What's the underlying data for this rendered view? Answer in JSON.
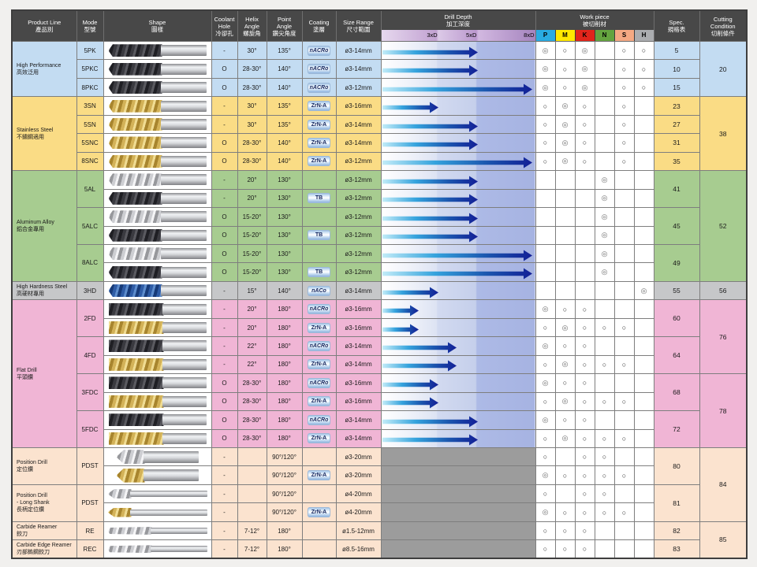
{
  "table": {
    "columns": {
      "product": [
        "Product Line",
        "產品別"
      ],
      "mode": [
        "Mode",
        "型號"
      ],
      "shape": [
        "Shape",
        "圖樣"
      ],
      "coolant": [
        "Coolant",
        "Hole",
        "冷卻孔"
      ],
      "helix": [
        "Helix",
        "Angle",
        "螺旋角"
      ],
      "point": [
        "Point",
        "Angle",
        "鑽尖角度"
      ],
      "coating": [
        "Coating",
        "塗層"
      ],
      "size": [
        "Size Range",
        "尺寸範圍"
      ],
      "depth": [
        "Drill Depth",
        "加工深度"
      ],
      "work": [
        "Work piece",
        "被切削材"
      ],
      "spec": [
        "Spec.",
        "規格表"
      ],
      "cutting": [
        "Cutting",
        "Condition",
        "切削條件"
      ]
    },
    "depth_scale": [
      "3xD",
      "5xD",
      "8xD"
    ],
    "materials": [
      {
        "label": "P",
        "color": "#29ABE2"
      },
      {
        "label": "M",
        "color": "#FFE800"
      },
      {
        "label": "K",
        "color": "#E1251B"
      },
      {
        "label": "N",
        "color": "#64A43F"
      },
      {
        "label": "S",
        "color": "#F5A983"
      },
      {
        "label": "H",
        "color": "#ABADB0"
      }
    ],
    "sections": [
      {
        "name_lines": [
          "High Performance",
          "高效泛用"
        ],
        "color": "#C3DCF2",
        "models": [
          {
            "mode": "5PK",
            "spec": "5",
            "rows": [
              {
                "flute": "dark",
                "form": "drill",
                "coolant": "-",
                "helix": "30°",
                "point": "135°",
                "coating": "nACRo",
                "size": "ø3-14mm",
                "depth": "5xD",
                "marks": [
                  "◎",
                  "○",
                  "◎",
                  "",
                  "○",
                  "○"
                ]
              }
            ]
          },
          {
            "mode": "5PKC",
            "spec": "10",
            "rows": [
              {
                "flute": "dark",
                "form": "drill",
                "coolant": "O",
                "helix": "28-30°",
                "point": "140°",
                "coating": "nACRo",
                "size": "ø3-14mm",
                "depth": "5xD",
                "marks": [
                  "◎",
                  "○",
                  "◎",
                  "",
                  "○",
                  "○"
                ]
              }
            ]
          },
          {
            "mode": "8PKC",
            "spec": "15",
            "rows": [
              {
                "flute": "dark",
                "form": "drill",
                "coolant": "O",
                "helix": "28-30°",
                "point": "140°",
                "coating": "nACRo",
                "size": "ø3-12mm",
                "depth": "8xD",
                "marks": [
                  "◎",
                  "○",
                  "◎",
                  "",
                  "○",
                  "○"
                ]
              }
            ]
          }
        ]
      },
      {
        "name_lines": [
          "Stainless Steel",
          "不鏽鋼適用"
        ],
        "color": "#FADC85",
        "models": [
          {
            "mode": "3SN",
            "spec": "23",
            "rows": [
              {
                "flute": "gold",
                "form": "drill",
                "coolant": "-",
                "helix": "30°",
                "point": "135°",
                "coating": "ZrN-A",
                "size": "ø3-16mm",
                "depth": "3xD",
                "marks": [
                  "○",
                  "◎",
                  "○",
                  "",
                  "○",
                  ""
                ]
              }
            ]
          },
          {
            "mode": "5SN",
            "spec": "27",
            "rows": [
              {
                "flute": "gold",
                "form": "drill",
                "coolant": "-",
                "helix": "30°",
                "point": "135°",
                "coating": "ZrN-A",
                "size": "ø3-14mm",
                "depth": "5xD",
                "marks": [
                  "○",
                  "◎",
                  "○",
                  "",
                  "○",
                  ""
                ]
              }
            ]
          },
          {
            "mode": "5SNC",
            "spec": "31",
            "rows": [
              {
                "flute": "gold",
                "form": "drill",
                "coolant": "O",
                "helix": "28-30°",
                "point": "140°",
                "coating": "ZrN-A",
                "size": "ø3-14mm",
                "depth": "5xD",
                "marks": [
                  "○",
                  "◎",
                  "○",
                  "",
                  "○",
                  ""
                ]
              }
            ]
          },
          {
            "mode": "8SNC",
            "spec": "35",
            "rows": [
              {
                "flute": "gold",
                "form": "drill",
                "coolant": "O",
                "helix": "28-30°",
                "point": "140°",
                "coating": "ZrN-A",
                "size": "ø3-12mm",
                "depth": "8xD",
                "marks": [
                  "○",
                  "◎",
                  "○",
                  "",
                  "○",
                  ""
                ]
              }
            ]
          }
        ]
      },
      {
        "name_lines": [
          "Aluminum Alloy",
          "鋁合金專用"
        ],
        "color": "#A7CC90",
        "models": [
          {
            "mode": "5AL",
            "spec": "41",
            "rows": [
              {
                "flute": "silver",
                "form": "drill",
                "coolant": "-",
                "helix": "20°",
                "point": "130°",
                "coating": null,
                "size": "ø3-12mm",
                "depth": "5xD",
                "marks": [
                  "",
                  "",
                  "",
                  "◎",
                  "",
                  ""
                ]
              },
              {
                "flute": "dark",
                "form": "drill",
                "coolant": "-",
                "helix": "20°",
                "point": "130°",
                "coating": "TB",
                "size": "ø3-12mm",
                "depth": "5xD",
                "marks": [
                  "",
                  "",
                  "",
                  "◎",
                  "",
                  ""
                ]
              }
            ]
          },
          {
            "mode": "5ALC",
            "spec": "45",
            "rows": [
              {
                "flute": "silver",
                "form": "drill",
                "coolant": "O",
                "helix": "15-20°",
                "point": "130°",
                "coating": null,
                "size": "ø3-12mm",
                "depth": "5xD",
                "marks": [
                  "",
                  "",
                  "",
                  "◎",
                  "",
                  ""
                ]
              },
              {
                "flute": "dark",
                "form": "drill",
                "coolant": "O",
                "helix": "15-20°",
                "point": "130°",
                "coating": "TB",
                "size": "ø3-12mm",
                "depth": "5xD",
                "marks": [
                  "",
                  "",
                  "",
                  "◎",
                  "",
                  ""
                ]
              }
            ]
          },
          {
            "mode": "8ALC",
            "spec": "49",
            "rows": [
              {
                "flute": "silver",
                "form": "drill",
                "coolant": "O",
                "helix": "15-20°",
                "point": "130°",
                "coating": null,
                "size": "ø3-12mm",
                "depth": "8xD",
                "marks": [
                  "",
                  "",
                  "",
                  "◎",
                  "",
                  ""
                ]
              },
              {
                "flute": "dark",
                "form": "drill",
                "coolant": "O",
                "helix": "15-20°",
                "point": "130°",
                "coating": "TB",
                "size": "ø3-12mm",
                "depth": "8xD",
                "marks": [
                  "",
                  "",
                  "",
                  "◎",
                  "",
                  ""
                ]
              }
            ]
          }
        ]
      },
      {
        "name_lines": [
          "High Hardness Steel",
          "高硬材專用"
        ],
        "color": "#C6C7C9",
        "models": [
          {
            "mode": "3HD",
            "spec": "55",
            "rows": [
              {
                "flute": "blue",
                "form": "drill",
                "coolant": "-",
                "helix": "15°",
                "point": "140°",
                "coating": "nACo",
                "size": "ø3-14mm",
                "depth": "3xD",
                "marks": [
                  "",
                  "",
                  "",
                  "",
                  "",
                  "◎"
                ]
              }
            ]
          }
        ]
      },
      {
        "name_lines": [
          "Flat Drill",
          "平頭鑽"
        ],
        "color": "#F0B5D5",
        "models": [
          {
            "mode": "2FD",
            "spec": "60",
            "rows": [
              {
                "flute": "dark",
                "form": "flat",
                "coolant": "-",
                "helix": "20°",
                "point": "180°",
                "coating": "nACRo",
                "size": "ø3-16mm",
                "depth": "2xD",
                "marks": [
                  "◎",
                  "○",
                  "○",
                  "",
                  "",
                  ""
                ]
              },
              {
                "flute": "gold",
                "form": "flat",
                "coolant": "-",
                "helix": "20°",
                "point": "180°",
                "coating": "ZrN-A",
                "size": "ø3-16mm",
                "depth": "2xD",
                "marks": [
                  "○",
                  "◎",
                  "○",
                  "○",
                  "○",
                  ""
                ]
              }
            ]
          },
          {
            "mode": "4FD",
            "spec": "64",
            "rows": [
              {
                "flute": "dark",
                "form": "flat",
                "coolant": "-",
                "helix": "22°",
                "point": "180°",
                "coating": "nACRo",
                "size": "ø3-14mm",
                "depth": "4xD",
                "marks": [
                  "◎",
                  "○",
                  "○",
                  "",
                  "",
                  ""
                ]
              },
              {
                "flute": "gold",
                "form": "flat",
                "coolant": "-",
                "helix": "22°",
                "point": "180°",
                "coating": "ZrN-A",
                "size": "ø3-14mm",
                "depth": "4xD",
                "marks": [
                  "○",
                  "◎",
                  "○",
                  "○",
                  "○",
                  ""
                ]
              }
            ]
          },
          {
            "mode": "3FDC",
            "spec": "68",
            "rows": [
              {
                "flute": "dark",
                "form": "flat",
                "coolant": "O",
                "helix": "28-30°",
                "point": "180°",
                "coating": "nACRo",
                "size": "ø3-16mm",
                "depth": "3xD",
                "marks": [
                  "◎",
                  "○",
                  "○",
                  "",
                  "",
                  ""
                ]
              },
              {
                "flute": "gold",
                "form": "flat",
                "coolant": "O",
                "helix": "28-30°",
                "point": "180°",
                "coating": "ZrN-A",
                "size": "ø3-16mm",
                "depth": "3xD",
                "marks": [
                  "○",
                  "◎",
                  "○",
                  "○",
                  "○",
                  ""
                ]
              }
            ]
          },
          {
            "mode": "5FDC",
            "spec": "72",
            "rows": [
              {
                "flute": "dark",
                "form": "flat",
                "coolant": "O",
                "helix": "28-30°",
                "point": "180°",
                "coating": "nACRo",
                "size": "ø3-14mm",
                "depth": "5xD",
                "marks": [
                  "◎",
                  "○",
                  "○",
                  "",
                  "",
                  ""
                ]
              },
              {
                "flute": "gold",
                "form": "flat",
                "coolant": "O",
                "helix": "28-30°",
                "point": "180°",
                "coating": "ZrN-A",
                "size": "ø3-14mm",
                "depth": "5xD",
                "marks": [
                  "○",
                  "◎",
                  "○",
                  "○",
                  "○",
                  ""
                ]
              }
            ]
          }
        ]
      },
      {
        "name_lines": [
          "Position Drill",
          "定位鑽"
        ],
        "color": "#FBE3CF",
        "models": [
          {
            "mode": "PDST",
            "spec": "80",
            "rows": [
              {
                "flute": "silver",
                "form": "stub",
                "coolant": "-",
                "helix": null,
                "point": "90°/120°",
                "coating": null,
                "size": "ø3-20mm",
                "depth": null,
                "marks": [
                  "○",
                  "",
                  "○",
                  "○",
                  "",
                  ""
                ]
              },
              {
                "flute": "gold",
                "form": "stub",
                "coolant": "-",
                "helix": null,
                "point": "90°/120°",
                "coating": "ZrN-A",
                "size": "ø3-20mm",
                "depth": null,
                "marks": [
                  "◎",
                  "○",
                  "○",
                  "○",
                  "○",
                  ""
                ]
              }
            ]
          }
        ]
      },
      {
        "name_lines": [
          "Position Drill",
          "- Long Shank",
          "長柄定位鑽"
        ],
        "color": "#FBE3CF",
        "models": [
          {
            "mode": "PDST",
            "spec": "81",
            "rows": [
              {
                "flute": "silver",
                "form": "long",
                "coolant": "-",
                "helix": null,
                "point": "90°/120°",
                "coating": null,
                "size": "ø4-20mm",
                "depth": null,
                "marks": [
                  "○",
                  "",
                  "○",
                  "○",
                  "",
                  ""
                ]
              },
              {
                "flute": "gold",
                "form": "long",
                "coolant": "-",
                "helix": null,
                "point": "90°/120°",
                "coating": "ZrN-A",
                "size": "ø4-20mm",
                "depth": null,
                "marks": [
                  "◎",
                  "○",
                  "○",
                  "○",
                  "○",
                  ""
                ]
              }
            ]
          }
        ]
      },
      {
        "name_lines": [
          "Carbide Reamer",
          "鉸刀"
        ],
        "color": "#FBE3CF",
        "models": [
          {
            "mode": "RE",
            "spec": "82",
            "rows": [
              {
                "flute": "silver",
                "form": "reamer",
                "coolant": "-",
                "helix": "7-12°",
                "point": "180°",
                "coating": null,
                "size": "ø1.5-12mm",
                "depth": null,
                "marks": [
                  "○",
                  "○",
                  "○",
                  "",
                  "",
                  ""
                ]
              }
            ]
          }
        ]
      },
      {
        "name_lines": [
          "Carbide Edge Reamer",
          "刃部鎢鋼鉸刀"
        ],
        "color": "#FBE3CF",
        "models": [
          {
            "mode": "REC",
            "spec": "83",
            "rows": [
              {
                "flute": "silver",
                "form": "reamer",
                "coolant": "-",
                "helix": "7-12°",
                "point": "180°",
                "coating": null,
                "size": "ø8.5-16mm",
                "depth": null,
                "marks": [
                  "○",
                  "○",
                  "○",
                  "",
                  "",
                  ""
                ]
              }
            ]
          }
        ]
      }
    ],
    "cutting_conditions": [
      {
        "value": "20",
        "row": 0,
        "span": 3,
        "color": "#C3DCF2"
      },
      {
        "value": "38",
        "row": 3,
        "span": 4,
        "color": "#FADC85"
      },
      {
        "value": "52",
        "row": 7,
        "span": 6,
        "color": "#A7CC90"
      },
      {
        "value": "56",
        "row": 13,
        "span": 1,
        "color": "#C6C7C9"
      },
      {
        "value": "76",
        "row": 14,
        "span": 4,
        "color": "#F0B5D5"
      },
      {
        "value": "78",
        "row": 18,
        "span": 4,
        "color": "#F0B5D5"
      },
      {
        "value": "84",
        "row": 22,
        "span": 4,
        "color": "#FBE3CF"
      },
      {
        "value": "85",
        "row": 26,
        "span": 2,
        "color": "#FBE3CF"
      }
    ]
  }
}
